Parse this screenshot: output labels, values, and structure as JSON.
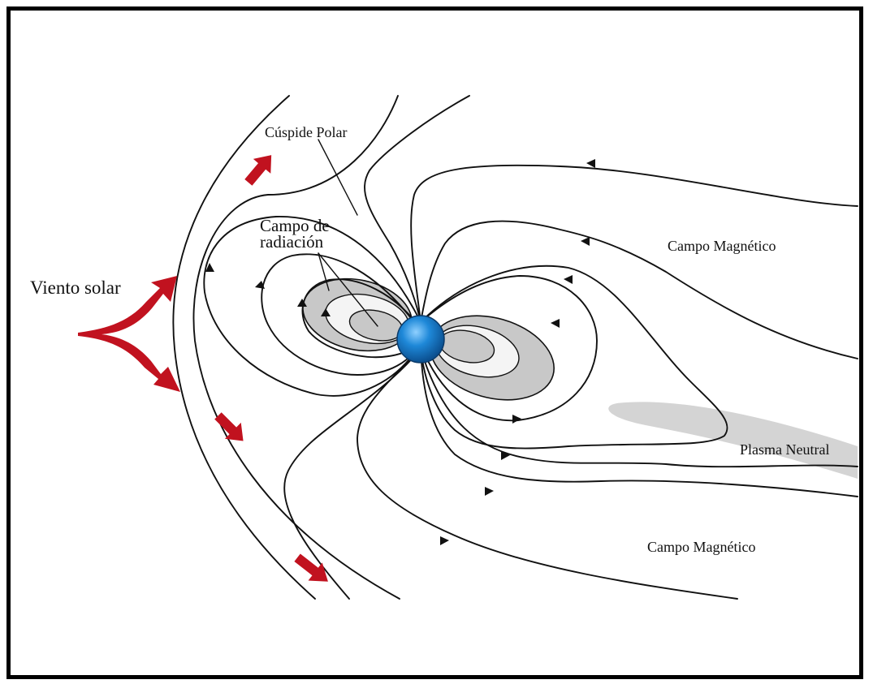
{
  "labels": {
    "solar_wind": "Viento solar",
    "polar_cusp": "Cúspide Polar",
    "radiation_field": "Campo de radiación",
    "magnetic_field_upper": "Campo Magnético",
    "magnetic_field_lower": "Campo Magnético",
    "neutral_plasma": "Plasma Neutral"
  },
  "colors": {
    "frame": "#000000",
    "field_lines": "#111111",
    "solar_wind_arrows": "#c1121f",
    "radiation_outer": "#c8c8c8",
    "radiation_inner": "#f4f4f4",
    "plasma_sheet": "#d4d4d4",
    "earth": "#1e88d8"
  },
  "icons": {
    "earth": "earth-globe-icon",
    "solar_wind": "red-arrow-icon"
  }
}
